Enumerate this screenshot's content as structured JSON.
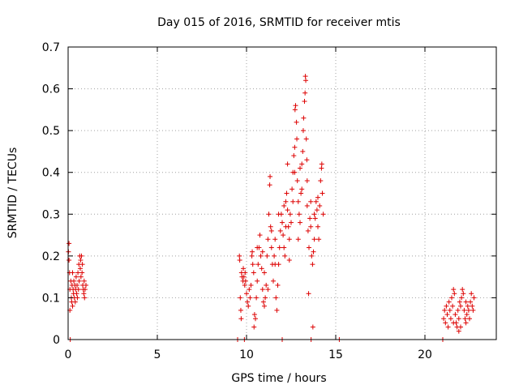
{
  "chart_data": {
    "type": "scatter",
    "title": "Day 015 of 2016, SRMTID for receiver mtis",
    "xlabel": "GPS time / hours",
    "ylabel": "SRMTID / TECUs",
    "xlim": [
      0,
      24
    ],
    "ylim": [
      0,
      0.7
    ],
    "xticks": [
      0,
      5,
      10,
      15,
      20
    ],
    "xtick_labels": [
      "0",
      "5",
      "10",
      "15",
      "20"
    ],
    "yticks": [
      0,
      0.1,
      0.2,
      0.3,
      0.4,
      0.5,
      0.6,
      0.7
    ],
    "ytick_labels": [
      "0",
      "0.1",
      "0.2",
      "0.3",
      "0.4",
      "0.5",
      "0.6",
      "0.7"
    ],
    "grid": true,
    "marker": "+",
    "marker_color": "#dd0000",
    "series": [
      {
        "name": "SRMTID",
        "points": [
          [
            0.02,
            0.21
          ],
          [
            0.05,
            0.23
          ],
          [
            0.05,
            0.19
          ],
          [
            0.08,
            0.16
          ],
          [
            0.1,
            0.12
          ],
          [
            0.1,
            0.07
          ],
          [
            0.12,
            0.0
          ],
          [
            0.15,
            0.14
          ],
          [
            0.18,
            0.1
          ],
          [
            0.2,
            0.09
          ],
          [
            0.22,
            0.13
          ],
          [
            0.25,
            0.16
          ],
          [
            0.25,
            0.08
          ],
          [
            0.28,
            0.12
          ],
          [
            0.3,
            0.11
          ],
          [
            0.32,
            0.14
          ],
          [
            0.35,
            0.1
          ],
          [
            0.38,
            0.13
          ],
          [
            0.4,
            0.09
          ],
          [
            0.42,
            0.12
          ],
          [
            0.45,
            0.15
          ],
          [
            0.48,
            0.11
          ],
          [
            0.5,
            0.13
          ],
          [
            0.52,
            0.1
          ],
          [
            0.55,
            0.16
          ],
          [
            0.58,
            0.12
          ],
          [
            0.6,
            0.18
          ],
          [
            0.62,
            0.14
          ],
          [
            0.65,
            0.2
          ],
          [
            0.68,
            0.17
          ],
          [
            0.7,
            0.19
          ],
          [
            0.72,
            0.15
          ],
          [
            0.75,
            0.2
          ],
          [
            0.78,
            0.16
          ],
          [
            0.8,
            0.18
          ],
          [
            0.82,
            0.13
          ],
          [
            0.85,
            0.12
          ],
          [
            0.88,
            0.11
          ],
          [
            0.9,
            0.14
          ],
          [
            0.92,
            0.1
          ],
          [
            0.95,
            0.12
          ],
          [
            1.0,
            0.13
          ],
          [
            9.5,
            0.0
          ],
          [
            9.6,
            0.2
          ],
          [
            9.62,
            0.19
          ],
          [
            9.65,
            0.1
          ],
          [
            9.68,
            0.07
          ],
          [
            9.7,
            0.05
          ],
          [
            9.72,
            0.16
          ],
          [
            9.75,
            0.15
          ],
          [
            9.8,
            0.14
          ],
          [
            9.82,
            0.17
          ],
          [
            9.85,
            0.15
          ],
          [
            9.88,
            0.0
          ],
          [
            9.9,
            0.13
          ],
          [
            9.92,
            0.16
          ],
          [
            9.95,
            0.14
          ],
          [
            10.0,
            0.11
          ],
          [
            10.05,
            0.09
          ],
          [
            10.1,
            0.08
          ],
          [
            10.15,
            0.12
          ],
          [
            10.2,
            0.1
          ],
          [
            10.25,
            0.13
          ],
          [
            10.3,
            0.2
          ],
          [
            10.32,
            0.21
          ],
          [
            10.35,
            0.18
          ],
          [
            10.4,
            0.16
          ],
          [
            10.42,
            0.03
          ],
          [
            10.45,
            0.06
          ],
          [
            10.5,
            0.05
          ],
          [
            10.55,
            0.1
          ],
          [
            10.6,
            0.14
          ],
          [
            10.65,
            0.18
          ],
          [
            10.7,
            0.22
          ],
          [
            10.75,
            0.25
          ],
          [
            10.8,
            0.2
          ],
          [
            10.85,
            0.17
          ],
          [
            10.9,
            0.12
          ],
          [
            10.95,
            0.09
          ],
          [
            11.0,
            0.08
          ],
          [
            11.05,
            0.1
          ],
          [
            11.1,
            0.13
          ],
          [
            11.15,
            0.2
          ],
          [
            11.2,
            0.24
          ],
          [
            11.25,
            0.3
          ],
          [
            11.3,
            0.37
          ],
          [
            11.32,
            0.39
          ],
          [
            11.35,
            0.27
          ],
          [
            11.4,
            0.22
          ],
          [
            11.45,
            0.18
          ],
          [
            11.5,
            0.14
          ],
          [
            11.55,
            0.2
          ],
          [
            11.6,
            0.24
          ],
          [
            11.65,
            0.1
          ],
          [
            11.7,
            0.07
          ],
          [
            11.75,
            0.13
          ],
          [
            11.8,
            0.18
          ],
          [
            11.85,
            0.22
          ],
          [
            11.9,
            0.26
          ],
          [
            11.95,
            0.3
          ],
          [
            12.0,
            0.28
          ],
          [
            12.0,
            0.0
          ],
          [
            12.05,
            0.25
          ],
          [
            12.1,
            0.22
          ],
          [
            12.15,
            0.2
          ],
          [
            12.2,
            0.33
          ],
          [
            12.25,
            0.35
          ],
          [
            12.3,
            0.31
          ],
          [
            12.35,
            0.27
          ],
          [
            12.4,
            0.24
          ],
          [
            12.45,
            0.3
          ],
          [
            12.5,
            0.28
          ],
          [
            12.55,
            0.36
          ],
          [
            12.6,
            0.4
          ],
          [
            12.65,
            0.44
          ],
          [
            12.7,
            0.46
          ],
          [
            12.72,
            0.55
          ],
          [
            12.75,
            0.56
          ],
          [
            12.8,
            0.52
          ],
          [
            12.82,
            0.48
          ],
          [
            12.85,
            0.38
          ],
          [
            12.9,
            0.33
          ],
          [
            12.95,
            0.3
          ],
          [
            13.0,
            0.28
          ],
          [
            13.05,
            0.35
          ],
          [
            13.1,
            0.42
          ],
          [
            13.15,
            0.45
          ],
          [
            13.18,
            0.5
          ],
          [
            13.2,
            0.53
          ],
          [
            13.25,
            0.57
          ],
          [
            13.28,
            0.59
          ],
          [
            13.3,
            0.63
          ],
          [
            13.32,
            0.62
          ],
          [
            13.35,
            0.48
          ],
          [
            13.38,
            0.43
          ],
          [
            13.4,
            0.32
          ],
          [
            13.45,
            0.26
          ],
          [
            13.48,
            0.11
          ],
          [
            13.5,
            0.22
          ],
          [
            13.55,
            0.29
          ],
          [
            13.6,
            0.33
          ],
          [
            13.62,
            0.0
          ],
          [
            13.65,
            0.2
          ],
          [
            13.7,
            0.18
          ],
          [
            13.72,
            0.03
          ],
          [
            13.75,
            0.21
          ],
          [
            13.8,
            0.24
          ],
          [
            13.85,
            0.29
          ],
          [
            13.9,
            0.33
          ],
          [
            13.95,
            0.31
          ],
          [
            14.0,
            0.27
          ],
          [
            14.05,
            0.24
          ],
          [
            14.1,
            0.32
          ],
          [
            14.15,
            0.38
          ],
          [
            14.2,
            0.41
          ],
          [
            14.22,
            0.42
          ],
          [
            14.25,
            0.35
          ],
          [
            14.3,
            0.3
          ],
          [
            15.2,
            0.0
          ],
          [
            10.6,
            0.22
          ],
          [
            11.0,
            0.16
          ],
          [
            11.4,
            0.26
          ],
          [
            11.8,
            0.3
          ],
          [
            12.2,
            0.27
          ],
          [
            12.6,
            0.33
          ],
          [
            13.0,
            0.41
          ],
          [
            13.4,
            0.38
          ],
          [
            13.8,
            0.3
          ],
          [
            12.4,
            0.19
          ],
          [
            12.9,
            0.24
          ],
          [
            11.2,
            0.12
          ],
          [
            10.9,
            0.21
          ],
          [
            12.1,
            0.32
          ],
          [
            13.1,
            0.36
          ],
          [
            13.6,
            0.27
          ],
          [
            14.0,
            0.34
          ],
          [
            11.6,
            0.18
          ],
          [
            12.3,
            0.42
          ],
          [
            12.7,
            0.4
          ],
          [
            21.0,
            0.0
          ],
          [
            21.05,
            0.05
          ],
          [
            21.1,
            0.07
          ],
          [
            21.15,
            0.04
          ],
          [
            21.2,
            0.08
          ],
          [
            21.25,
            0.06
          ],
          [
            21.3,
            0.03
          ],
          [
            21.35,
            0.09
          ],
          [
            21.4,
            0.07
          ],
          [
            21.45,
            0.05
          ],
          [
            21.5,
            0.1
          ],
          [
            21.55,
            0.08
          ],
          [
            21.6,
            0.12
          ],
          [
            21.65,
            0.11
          ],
          [
            21.7,
            0.06
          ],
          [
            21.75,
            0.04
          ],
          [
            21.8,
            0.03
          ],
          [
            21.85,
            0.07
          ],
          [
            21.9,
            0.05
          ],
          [
            21.95,
            0.09
          ],
          [
            22.0,
            0.08
          ],
          [
            22.05,
            0.1
          ],
          [
            22.1,
            0.12
          ],
          [
            22.15,
            0.11
          ],
          [
            22.2,
            0.07
          ],
          [
            22.25,
            0.05
          ],
          [
            22.3,
            0.04
          ],
          [
            22.35,
            0.06
          ],
          [
            22.4,
            0.08
          ],
          [
            22.45,
            0.07
          ],
          [
            22.5,
            0.05
          ],
          [
            22.55,
            0.09
          ],
          [
            22.6,
            0.11
          ],
          [
            22.65,
            0.08
          ],
          [
            22.7,
            0.07
          ],
          [
            22.75,
            0.1
          ],
          [
            21.6,
            0.04
          ],
          [
            22.0,
            0.03
          ],
          [
            22.3,
            0.09
          ],
          [
            21.9,
            0.02
          ]
        ]
      }
    ]
  }
}
